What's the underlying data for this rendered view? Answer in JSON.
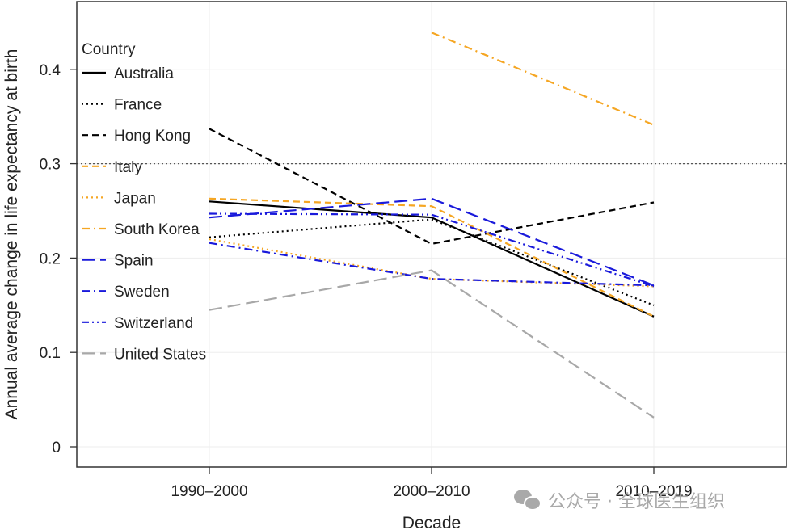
{
  "chart_data": {
    "type": "line",
    "title": "",
    "xlabel": "Decade",
    "ylabel": "Annual average change in life expectancy at birth",
    "categories": [
      "1990–2000",
      "2000–2010",
      "2010–2019"
    ],
    "ylim": [
      -0.022,
      0.47
    ],
    "yticks": [
      0,
      0.1,
      0.2,
      0.3,
      0.4
    ],
    "ytick_labels": [
      "0",
      "0.1",
      "0.2",
      "0.3",
      "0.4"
    ],
    "grid": true,
    "reference_line": {
      "y": 0.3,
      "style": "dotted",
      "color": "#555555"
    },
    "legend": {
      "title": "Country",
      "position": "top-left"
    },
    "series": [
      {
        "name": "Australia",
        "color": "#000000",
        "dash": "solid",
        "values": [
          0.26,
          0.243,
          0.138
        ]
      },
      {
        "name": "France",
        "color": "#000000",
        "dash": "dotted",
        "values": [
          0.222,
          0.241,
          0.15
        ]
      },
      {
        "name": "Hong Kong",
        "color": "#000000",
        "dash": "dashed",
        "values": [
          0.337,
          0.215,
          0.259
        ]
      },
      {
        "name": "Italy",
        "color": "#f5a623",
        "dash": "dashed",
        "values": [
          0.263,
          0.255,
          0.138
        ]
      },
      {
        "name": "Japan",
        "color": "#f5a623",
        "dash": "dotted",
        "values": [
          0.22,
          0.178,
          0.17
        ]
      },
      {
        "name": "South Korea",
        "color": "#f5a623",
        "dash": "dashdot",
        "values": [
          null,
          0.439,
          0.341
        ]
      },
      {
        "name": "Spain",
        "color": "#1a1adb",
        "dash": "longdash",
        "values": [
          0.243,
          0.263,
          0.171
        ]
      },
      {
        "name": "Sweden",
        "color": "#1a1adb",
        "dash": "dashdot",
        "values": [
          0.216,
          0.178,
          0.171
        ]
      },
      {
        "name": "Switzerland",
        "color": "#1a1adb",
        "dash": "dashdotdot",
        "values": [
          0.247,
          0.246,
          0.17
        ]
      },
      {
        "name": "United States",
        "color": "#a8a8a8",
        "dash": "longdash",
        "values": [
          0.145,
          0.187,
          0.031
        ]
      }
    ]
  },
  "watermark": {
    "text": "公众号 · 全球医生组织",
    "icon": "wechat-icon"
  }
}
